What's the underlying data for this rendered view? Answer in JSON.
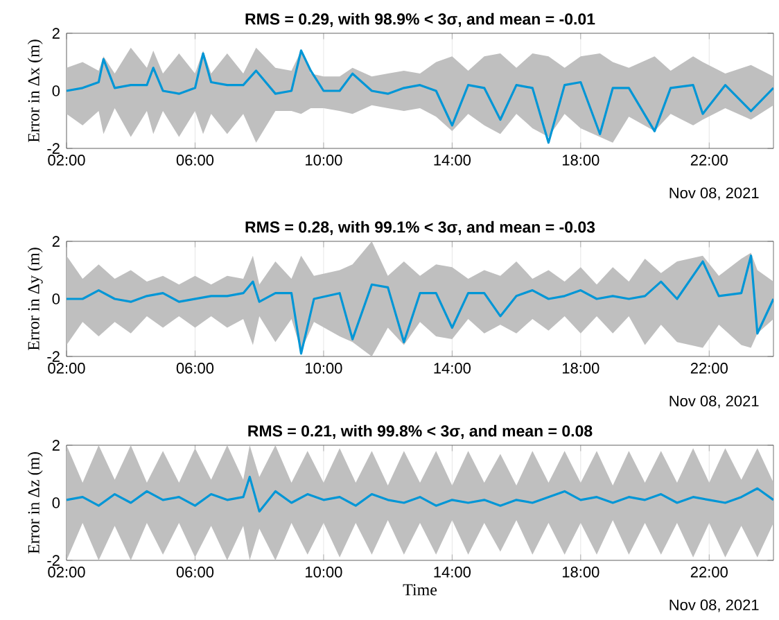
{
  "chart_data": [
    {
      "type": "line",
      "title": "RMS = 0.29, with 98.9% < 3σ, and mean = -0.01",
      "ylabel": "Error in Δx (m)",
      "xlim": [
        2,
        24
      ],
      "xticks": [
        {
          "value": 2,
          "label": "02:00"
        },
        {
          "value": 6,
          "label": "06:00"
        },
        {
          "value": 10,
          "label": "10:00"
        },
        {
          "value": 14,
          "label": "14:00"
        },
        {
          "value": 18,
          "label": "18:00"
        },
        {
          "value": 22,
          "label": "22:00"
        }
      ],
      "ylim": [
        -2,
        2
      ],
      "yticks": [
        -2,
        0,
        2
      ],
      "grid": true,
      "marker": "none",
      "line_style": "solid",
      "annotations": [
        "Nov 08, 2021"
      ],
      "series": [
        {
          "color": "#0096d6",
          "x": [
            2.0,
            2.5,
            3.0,
            3.15,
            3.5,
            4.0,
            4.5,
            4.7,
            5.0,
            5.5,
            6.0,
            6.25,
            6.5,
            7.0,
            7.5,
            7.9,
            8.5,
            9.0,
            9.3,
            9.6,
            10.0,
            10.5,
            10.9,
            11.5,
            12.0,
            12.5,
            13.0,
            13.5,
            14.0,
            14.5,
            15.0,
            15.5,
            16.0,
            16.5,
            17.0,
            17.5,
            18.0,
            18.6,
            19.0,
            19.5,
            20.3,
            20.8,
            21.5,
            21.8,
            22.5,
            23.3,
            24.0
          ],
          "values": [
            0,
            0.1,
            0.3,
            1.1,
            0.1,
            0.2,
            0.2,
            0.8,
            0.0,
            -0.1,
            0.1,
            1.3,
            0.3,
            0.2,
            0.2,
            0.7,
            -0.1,
            0.0,
            1.4,
            0.7,
            0.0,
            0.0,
            0.6,
            0.0,
            -0.1,
            0.1,
            0.2,
            0.0,
            -1.2,
            0.2,
            0.1,
            -1.0,
            0.2,
            0.1,
            -1.8,
            0.2,
            0.3,
            -1.5,
            0.1,
            0.1,
            -1.4,
            0.1,
            0.2,
            -0.8,
            0.2,
            -0.7,
            0.1
          ],
          "lower": [
            -0.8,
            -1.2,
            -0.7,
            -1.5,
            -0.6,
            -1.6,
            -0.7,
            -1.5,
            -0.7,
            -1.6,
            -0.7,
            -1.5,
            -0.8,
            -1.5,
            -0.8,
            -1.8,
            -0.7,
            -0.7,
            -0.8,
            -0.6,
            -0.6,
            -0.7,
            -0.8,
            -0.5,
            -0.6,
            -0.7,
            -0.6,
            -0.9,
            -1.4,
            -0.8,
            -1.2,
            -1.5,
            -0.8,
            -1.3,
            -1.6,
            -0.8,
            -1.3,
            -1.6,
            -1.8,
            -0.9,
            -1.4,
            -0.8,
            -1.2,
            -1.0,
            -0.6,
            -1.0,
            -0.5
          ],
          "upper": [
            0.8,
            1.0,
            0.7,
            1.2,
            0.6,
            1.5,
            0.8,
            1.4,
            0.6,
            1.3,
            0.6,
            1.4,
            0.6,
            1.3,
            0.6,
            1.5,
            0.8,
            0.7,
            1.4,
            0.6,
            0.5,
            0.5,
            0.8,
            0.5,
            0.6,
            0.7,
            0.6,
            1.0,
            1.2,
            0.7,
            1.2,
            1.3,
            0.8,
            1.3,
            1.2,
            0.8,
            1.2,
            1.3,
            1.0,
            0.8,
            1.2,
            0.7,
            1.2,
            1.0,
            0.6,
            0.9,
            0.5
          ]
        }
      ]
    },
    {
      "type": "line",
      "title": "RMS = 0.28, with 99.1% < 3σ, and mean = -0.03",
      "ylabel": "Error in Δy (m)",
      "xlim": [
        2,
        24
      ],
      "xticks": [
        {
          "value": 2,
          "label": "02:00"
        },
        {
          "value": 6,
          "label": "06:00"
        },
        {
          "value": 10,
          "label": "10:00"
        },
        {
          "value": 14,
          "label": "14:00"
        },
        {
          "value": 18,
          "label": "18:00"
        },
        {
          "value": 22,
          "label": "22:00"
        }
      ],
      "ylim": [
        -2,
        2
      ],
      "yticks": [
        -2,
        0,
        2
      ],
      "grid": true,
      "marker": "none",
      "line_style": "solid",
      "annotations": [
        "Nov 08, 2021"
      ],
      "series": [
        {
          "color": "#0096d6",
          "x": [
            2.0,
            2.5,
            3.0,
            3.5,
            4.0,
            4.5,
            5.0,
            5.5,
            6.0,
            6.5,
            7.0,
            7.5,
            7.8,
            8.0,
            8.5,
            9.0,
            9.3,
            9.7,
            10.5,
            10.9,
            11.5,
            12.0,
            12.5,
            13.0,
            13.5,
            14.0,
            14.5,
            15.0,
            15.5,
            16.0,
            16.5,
            17.0,
            17.5,
            18.0,
            18.5,
            19.0,
            19.5,
            20.0,
            20.5,
            21.0,
            21.8,
            22.3,
            23.0,
            23.3,
            23.5,
            24.0
          ],
          "values": [
            0,
            0,
            0.3,
            0.0,
            -0.1,
            0.1,
            0.2,
            -0.1,
            0.0,
            0.1,
            0.1,
            0.2,
            0.6,
            -0.1,
            0.2,
            0.2,
            -1.9,
            0.0,
            0.2,
            -1.4,
            0.5,
            0.4,
            -1.5,
            0.2,
            0.2,
            -1.0,
            0.2,
            0.2,
            -0.6,
            0.1,
            0.3,
            0.0,
            0.1,
            0.3,
            0.0,
            0.1,
            0.0,
            0.1,
            0.6,
            0.0,
            1.3,
            0.1,
            0.2,
            1.5,
            -1.2,
            0.0
          ],
          "lower": [
            -1.6,
            -0.8,
            -1.3,
            -0.8,
            -1.2,
            -0.6,
            -1.0,
            -0.6,
            -1.0,
            -0.6,
            -1.0,
            -0.7,
            -1.6,
            -0.6,
            -1.5,
            -0.7,
            -1.8,
            -0.8,
            -1.3,
            -1.5,
            -2.0,
            -1.0,
            -1.6,
            -0.8,
            -1.3,
            -1.4,
            -0.7,
            -1.2,
            -0.9,
            -1.2,
            -0.7,
            -1.1,
            -0.6,
            -1.2,
            -0.6,
            -1.2,
            -0.6,
            -1.6,
            -0.9,
            -1.5,
            -1.7,
            -0.9,
            -1.6,
            -1.7,
            -1.2,
            -0.7
          ],
          "upper": [
            1.5,
            0.7,
            1.2,
            0.7,
            1.0,
            0.6,
            0.8,
            0.5,
            0.8,
            0.5,
            0.8,
            0.7,
            1.5,
            0.5,
            1.3,
            0.7,
            1.5,
            0.8,
            1.0,
            1.2,
            2.0,
            0.8,
            1.3,
            0.8,
            1.2,
            1.1,
            0.7,
            1.0,
            0.8,
            1.3,
            0.7,
            1.0,
            0.6,
            1.1,
            0.5,
            1.1,
            0.6,
            1.4,
            0.9,
            1.3,
            1.5,
            0.8,
            1.4,
            1.6,
            1.0,
            0.6
          ]
        }
      ]
    },
    {
      "type": "line",
      "title": "RMS = 0.21, with 99.8% < 3σ, and mean = 0.08",
      "ylabel": "Error in Δz (m)",
      "xlabel": "Time",
      "xlim": [
        2,
        24
      ],
      "xticks": [
        {
          "value": 2,
          "label": "02:00"
        },
        {
          "value": 6,
          "label": "06:00"
        },
        {
          "value": 10,
          "label": "10:00"
        },
        {
          "value": 14,
          "label": "14:00"
        },
        {
          "value": 18,
          "label": "18:00"
        },
        {
          "value": 22,
          "label": "22:00"
        }
      ],
      "ylim": [
        -2,
        2
      ],
      "yticks": [
        -2,
        0,
        2
      ],
      "grid": true,
      "marker": "none",
      "line_style": "solid",
      "annotations": [
        "Nov 08, 2021"
      ],
      "series": [
        {
          "color": "#0096d6",
          "x": [
            2.0,
            2.5,
            3.0,
            3.5,
            4.0,
            4.5,
            5.0,
            5.5,
            6.0,
            6.5,
            7.0,
            7.5,
            7.7,
            8.0,
            8.5,
            9.0,
            9.5,
            10.0,
            10.5,
            11.0,
            11.5,
            12.0,
            12.5,
            13.0,
            13.5,
            14.0,
            14.5,
            15.0,
            15.5,
            16.0,
            16.5,
            17.0,
            17.5,
            18.0,
            18.5,
            19.0,
            19.5,
            20.0,
            20.5,
            21.0,
            21.5,
            22.0,
            22.5,
            23.0,
            23.5,
            24.0
          ],
          "values": [
            0.1,
            0.2,
            -0.1,
            0.3,
            0.0,
            0.4,
            0.1,
            0.2,
            -0.1,
            0.3,
            0.1,
            0.2,
            0.9,
            -0.3,
            0.4,
            0.0,
            0.3,
            0.1,
            0.2,
            -0.1,
            0.3,
            0.1,
            0.0,
            0.2,
            -0.1,
            0.1,
            0.0,
            0.1,
            -0.1,
            0.1,
            0.0,
            0.2,
            0.4,
            0.1,
            0.2,
            0.0,
            0.2,
            0.1,
            0.3,
            0.0,
            0.2,
            0.1,
            0.0,
            0.2,
            0.5,
            0.1
          ],
          "lower": [
            -2.0,
            -0.7,
            -2.0,
            -0.8,
            -2.0,
            -0.7,
            -1.8,
            -0.7,
            -1.9,
            -0.8,
            -2.0,
            -0.8,
            -2.0,
            -0.9,
            -2.0,
            -0.7,
            -1.8,
            -0.7,
            -1.9,
            -0.7,
            -1.8,
            -0.6,
            -1.8,
            -0.7,
            -1.8,
            -0.6,
            -1.8,
            -0.7,
            -1.7,
            -0.6,
            -1.8,
            -0.7,
            -1.8,
            -0.7,
            -1.8,
            -0.6,
            -1.8,
            -0.7,
            -1.8,
            -0.7,
            -1.9,
            -0.7,
            -1.9,
            -0.8,
            -1.9,
            -0.7
          ],
          "upper": [
            2.0,
            0.7,
            2.0,
            0.8,
            2.0,
            0.7,
            1.8,
            0.7,
            1.9,
            0.8,
            2.0,
            0.8,
            2.0,
            0.9,
            2.0,
            0.7,
            1.8,
            0.7,
            1.9,
            0.7,
            1.8,
            0.6,
            1.8,
            0.7,
            1.8,
            0.6,
            1.8,
            0.7,
            1.7,
            0.6,
            1.8,
            0.7,
            1.8,
            0.7,
            1.8,
            0.6,
            1.8,
            0.7,
            1.8,
            0.7,
            1.9,
            0.7,
            1.9,
            0.8,
            1.9,
            0.7
          ]
        }
      ]
    }
  ]
}
